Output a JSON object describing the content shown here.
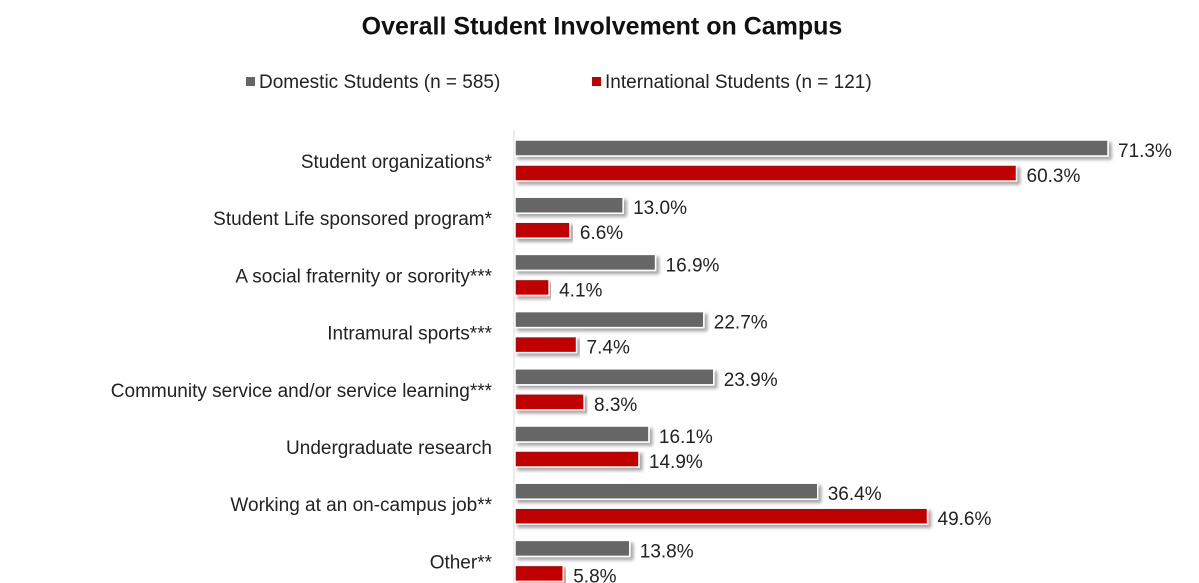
{
  "chart_data": {
    "type": "barh",
    "title": "Overall Student Involvement on Campus",
    "categories": [
      "Student organizations*",
      "Student Life sponsored program*",
      "A social fraternity or sorority***",
      "Intramural sports***",
      "Community service and/or service learning***",
      "Undergraduate research",
      "Working at an on-campus job**",
      "Other**"
    ],
    "series": [
      {
        "name": "Domestic Students (n = 585)",
        "color": "#666666",
        "values": [
          71.3,
          13.0,
          16.9,
          22.7,
          23.9,
          16.1,
          36.4,
          13.8
        ],
        "value_labels": [
          "71.3%",
          "13.0%",
          "16.9%",
          "22.7%",
          "23.9%",
          "16.1%",
          "36.4%",
          "13.8%"
        ]
      },
      {
        "name": "International Students (n = 121)",
        "color": "#c00000",
        "values": [
          60.3,
          6.6,
          4.1,
          7.4,
          8.3,
          14.9,
          49.6,
          5.8
        ],
        "value_labels": [
          "60.3%",
          "6.6%",
          "4.1%",
          "7.4%",
          "8.3%",
          "14.9%",
          "49.6%",
          "5.8%"
        ]
      }
    ],
    "xlim": [
      0,
      100
    ],
    "legend": "top"
  }
}
